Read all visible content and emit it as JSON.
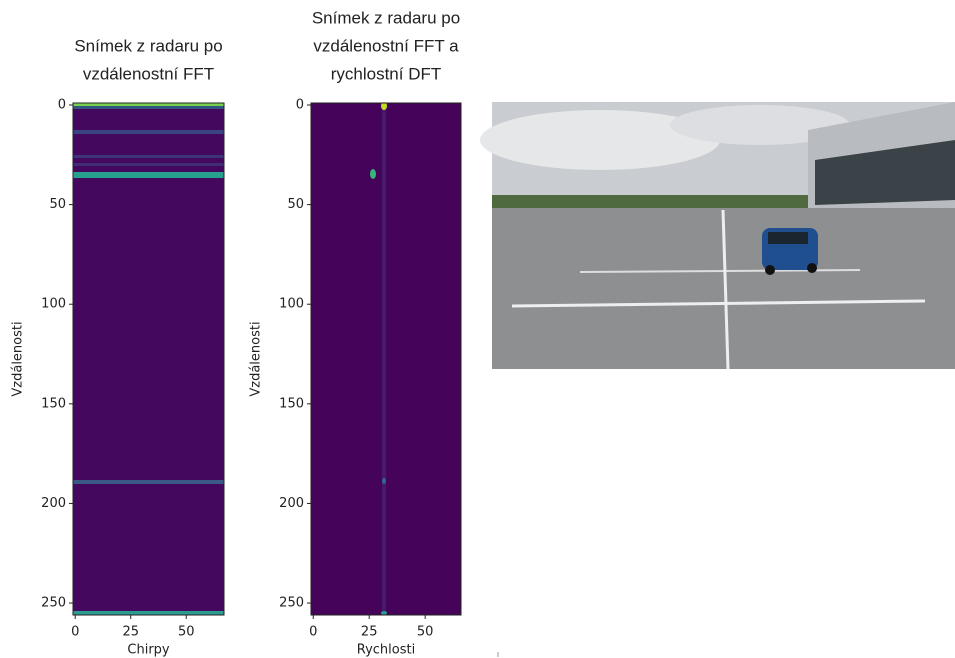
{
  "chart_data": [
    {
      "type": "heatmap",
      "title": [
        "Snímek z radaru po",
        "vzdálenostní FFT"
      ],
      "x_label": "Chirpy",
      "y_label": "Vzdálenosti",
      "xlim": [
        -1,
        67
      ],
      "ylim": [
        256,
        -1
      ],
      "xticks": [
        0,
        25,
        50
      ],
      "yticks": [
        0,
        50,
        100,
        150,
        200,
        250
      ]
    },
    {
      "type": "heatmap",
      "title": [
        "Snímek z radaru po",
        "vzdálenostní FFT a",
        "rychlostní DFT"
      ],
      "x_label": "Rychlosti",
      "y_label": "Vzdálenosti",
      "xlim": [
        -1,
        66
      ],
      "ylim": [
        256,
        -1
      ],
      "xticks": [
        0,
        25,
        50
      ],
      "yticks": [
        0,
        50,
        100,
        150,
        200,
        250
      ]
    }
  ]
}
